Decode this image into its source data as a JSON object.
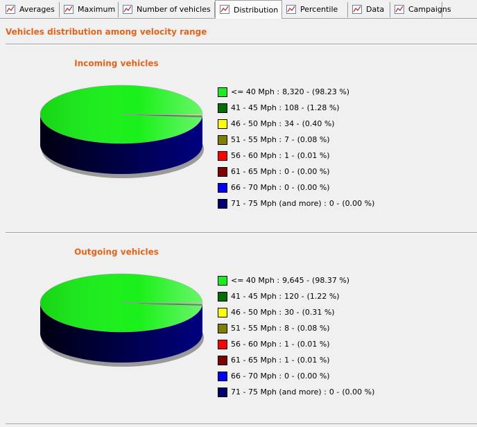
{
  "tabs": [
    "Averages",
    "Maximum",
    "Number of vehicles",
    "Distribution",
    "Percentile",
    "Data",
    "Campaigns"
  ],
  "active_tab": 3,
  "heading": "Vehicles distribution among velocity range",
  "chart_data": [
    {
      "type": "pie",
      "title": "Incoming vehicles",
      "categories": [
        "<=  40 Mph :",
        "41 -  45 Mph :",
        "46 -  50 Mph :",
        "51 -  55 Mph :",
        "56 -  60 Mph :",
        "61 -  65 Mph :",
        "66 -  70 Mph :",
        "71 -  75 Mph (and more) :"
      ],
      "values": [
        8320,
        108,
        34,
        7,
        1,
        0,
        0,
        0
      ],
      "value_labels": [
        "8,320 -",
        "108 -",
        "34 -",
        "7 -",
        "1 -",
        "0 -",
        "0 -",
        "0 -"
      ],
      "percent_labels": [
        "(98.23 %)",
        "(1.28 %)",
        "(0.40 %)",
        "(0.08 %)",
        "(0.01 %)",
        "(0.00 %)",
        "(0.00 %)",
        "(0.00 %)"
      ],
      "colors": [
        "#19f019",
        "#007000",
        "#ffff00",
        "#808000",
        "#ff0000",
        "#800000",
        "#0000ff",
        "#000070"
      ]
    },
    {
      "type": "pie",
      "title": "Outgoing vehicles",
      "categories": [
        "<=  40 Mph :",
        "41 -  45 Mph :",
        "46 -  50 Mph :",
        "51 -  55 Mph :",
        "56 -  60 Mph :",
        "61 -  65 Mph :",
        "66 -  70 Mph :",
        "71 -  75 Mph (and more) :"
      ],
      "values": [
        9645,
        120,
        30,
        8,
        1,
        1,
        0,
        0
      ],
      "value_labels": [
        "9,645 -",
        "120 -",
        "30 -",
        "8 -",
        "1 -",
        "1 -",
        "0 -",
        "0 -"
      ],
      "percent_labels": [
        "(98.37 %)",
        "(1.22 %)",
        "(0.31 %)",
        "(0.08 %)",
        "(0.01 %)",
        "(0.01 %)",
        "(0.00 %)",
        "(0.00 %)"
      ],
      "colors": [
        "#19f019",
        "#007000",
        "#ffff00",
        "#808000",
        "#ff0000",
        "#800000",
        "#0000ff",
        "#000070"
      ]
    }
  ]
}
